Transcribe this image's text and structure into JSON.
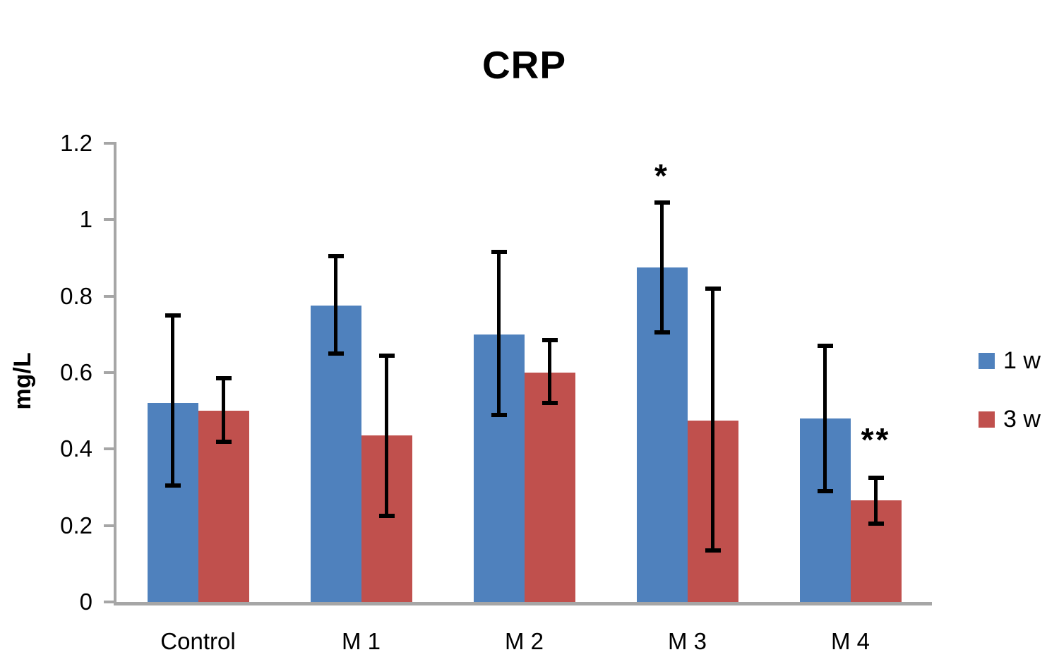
{
  "chart_data": {
    "type": "bar",
    "title": "CRP",
    "ylabel": "mg/L",
    "categories": [
      "Control",
      "M 1",
      "M 2",
      "M 3",
      "M 4"
    ],
    "series": [
      {
        "name": "1 w",
        "color": "#4F81BD",
        "values": [
          0.52,
          0.775,
          0.7,
          0.875,
          0.48
        ],
        "error_low": [
          0.305,
          0.65,
          0.49,
          0.705,
          0.29
        ],
        "error_high": [
          0.75,
          0.905,
          0.915,
          1.045,
          0.67
        ]
      },
      {
        "name": "3 w",
        "color": "#C0504D",
        "values": [
          0.5,
          0.435,
          0.6,
          0.475,
          0.265
        ],
        "error_low": [
          0.42,
          0.225,
          0.52,
          0.135,
          0.205
        ],
        "error_high": [
          0.585,
          0.645,
          0.685,
          0.82,
          0.325
        ]
      }
    ],
    "ylim": [
      0,
      1.2
    ],
    "ytick_labels": [
      "0",
      "0.2",
      "0.4",
      "0.6",
      "0.8",
      "1",
      "1.2"
    ],
    "grid": false,
    "legend_position": "right",
    "annotations": [
      {
        "text": "*",
        "series": "1 w",
        "category": "M 3",
        "y": 1.08
      },
      {
        "text": "**",
        "series": "3 w",
        "category": "M 4",
        "y": 0.39
      }
    ],
    "axis_color": "#A6A6A6",
    "error_bar_color": "#000000"
  }
}
